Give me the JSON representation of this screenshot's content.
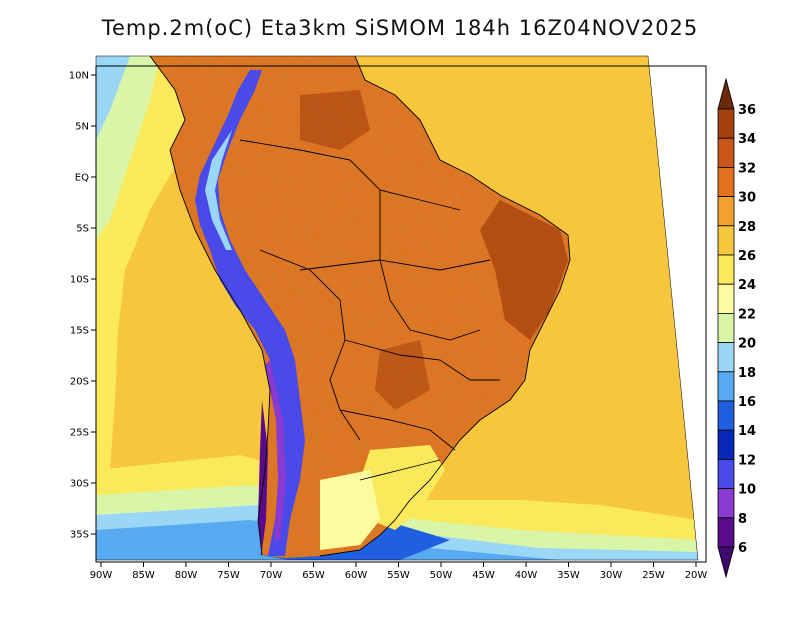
{
  "title": "Temp.2m(oC) Eta3km SiSMOM 184h 16Z04NOV2025",
  "map": {
    "lon_ticks": [
      "90W",
      "85W",
      "80W",
      "75W",
      "70W",
      "65W",
      "60W",
      "55W",
      "50W",
      "45W",
      "40W",
      "35W",
      "30W",
      "25W",
      "20W"
    ],
    "lat_ticks": [
      "10N",
      "5N",
      "EQ",
      "5S",
      "10S",
      "15S",
      "20S",
      "25S",
      "30S",
      "35S"
    ],
    "extent": {
      "lon_min": -91,
      "lon_max": -19,
      "lat_min": -38,
      "lat_max": 11
    },
    "projection": "regional (Eta domain, slightly trapezoidal)"
  },
  "colorbar": {
    "unit": "oC",
    "labels": [
      "36",
      "34",
      "32",
      "30",
      "28",
      "26",
      "24",
      "22",
      "20",
      "18",
      "16",
      "14",
      "12",
      "10",
      "8",
      "6"
    ],
    "colors": [
      "#7a2e0e",
      "#a5400e",
      "#c8561a",
      "#e2711d",
      "#f2a02e",
      "#f6c63d",
      "#fbe95c",
      "#fdfba0",
      "#d8f5a8",
      "#9ad7f6",
      "#58aaf0",
      "#1f5fe0",
      "#0a28b8",
      "#4a4ae8",
      "#8a3ad0",
      "#5a0a8a",
      "#3d0a6e"
    ],
    "arrow_top_color": "#6b2a0a",
    "arrow_bottom_color": "#3d0a6e"
  }
}
